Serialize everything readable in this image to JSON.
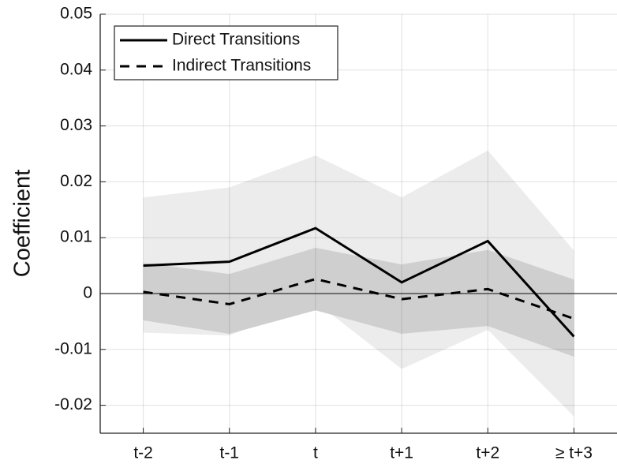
{
  "chart_data": {
    "type": "line",
    "y_label": "Coefficient",
    "categories": [
      "t-2",
      "t-1",
      "t",
      "t+1",
      "t+2",
      "≥ t+3"
    ],
    "series": [
      {
        "name": "Direct Transitions",
        "color": "#000000",
        "dash": "solid",
        "values": [
          0.005,
          0.0057,
          0.0117,
          0.002,
          0.0094,
          -0.0077
        ],
        "ci_upper": [
          0.0172,
          0.019,
          0.0247,
          0.0172,
          0.0256,
          0.0077
        ],
        "ci_lower": [
          -0.007,
          -0.0075,
          -0.0015,
          -0.0135,
          -0.0065,
          -0.022
        ],
        "ci_color": "#ececec"
      },
      {
        "name": "Indirect Transitions",
        "color": "#000000",
        "dash": "dashed",
        "values": [
          0.0003,
          -0.0019,
          0.0026,
          -0.001,
          0.0008,
          -0.0045
        ],
        "ci_upper": [
          0.0055,
          0.0035,
          0.0082,
          0.0052,
          0.0078,
          0.0025
        ],
        "ci_lower": [
          -0.0048,
          -0.0072,
          -0.003,
          -0.0072,
          -0.0058,
          -0.0113
        ],
        "ci_color": "#cfcfcf"
      }
    ],
    "ylim": [
      -0.025,
      0.05
    ],
    "yticks": [
      -0.02,
      -0.01,
      0,
      0.01,
      0.02,
      0.03,
      0.04,
      0.05
    ],
    "grid": true,
    "legend": "upper-left"
  }
}
